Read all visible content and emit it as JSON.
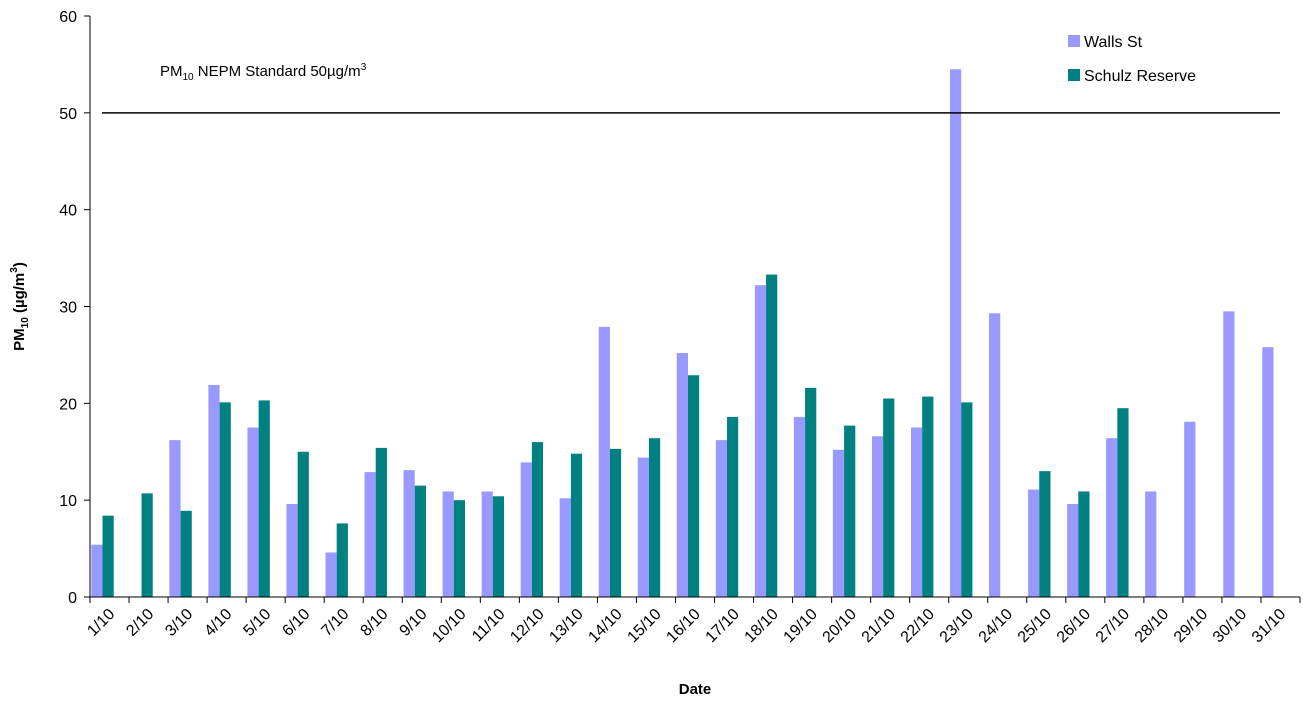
{
  "chart_data": {
    "type": "bar",
    "xlabel": "Date",
    "ylabel": {
      "main": "PM",
      "sub": "10",
      "rest": " (µg/m",
      "sup": "3",
      "close": ")"
    },
    "ylim": [
      0,
      60
    ],
    "yticks": [
      0,
      10,
      20,
      30,
      40,
      50,
      60
    ],
    "grid": false,
    "legend_position": "top-right",
    "categories": [
      "1/10",
      "2/10",
      "3/10",
      "4/10",
      "5/10",
      "6/10",
      "7/10",
      "8/10",
      "9/10",
      "10/10",
      "11/10",
      "12/10",
      "13/10",
      "14/10",
      "15/10",
      "16/10",
      "17/10",
      "18/10",
      "19/10",
      "20/10",
      "21/10",
      "22/10",
      "23/10",
      "24/10",
      "25/10",
      "26/10",
      "27/10",
      "28/10",
      "29/10",
      "30/10",
      "31/10"
    ],
    "series": [
      {
        "name": "Walls St",
        "color": "#9999ff",
        "values": [
          5.4,
          null,
          16.2,
          21.9,
          17.5,
          9.6,
          4.6,
          12.9,
          13.1,
          10.9,
          10.9,
          13.9,
          10.2,
          27.9,
          14.4,
          25.2,
          16.2,
          32.2,
          18.6,
          15.2,
          16.6,
          17.5,
          54.5,
          29.3,
          11.1,
          9.6,
          16.4,
          10.9,
          18.1,
          29.5,
          25.8
        ]
      },
      {
        "name": "Schulz Reserve",
        "color": "#008080",
        "values": [
          8.4,
          10.7,
          8.9,
          20.1,
          20.3,
          15.0,
          7.6,
          15.4,
          11.5,
          10.0,
          10.4,
          16.0,
          14.8,
          15.3,
          16.4,
          22.9,
          18.6,
          33.3,
          21.6,
          17.7,
          20.5,
          20.7,
          20.1,
          null,
          13.0,
          10.9,
          19.5,
          null,
          null,
          null,
          null
        ]
      }
    ],
    "annotations": [
      {
        "type": "hline",
        "value": 50,
        "color": "#000000",
        "label": {
          "main": "PM",
          "sub": "10",
          "rest": " NEPM Standard 50µg/m",
          "sup": "3"
        }
      }
    ]
  }
}
